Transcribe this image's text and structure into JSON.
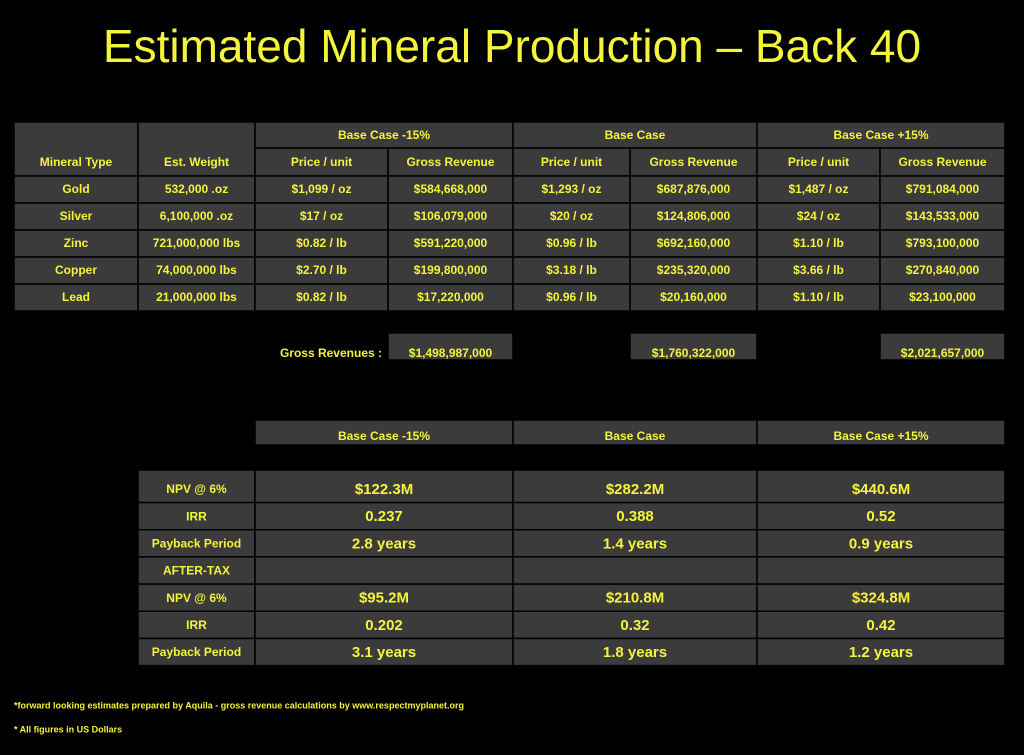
{
  "title": "Estimated Mineral Production – Back 40",
  "production_table": {
    "group_headers": [
      "Base Case -15%",
      "Base Case",
      "Base Case +15%"
    ],
    "column_headers": [
      "Mineral Type",
      "Est. Weight",
      "Price / unit",
      "Gross Revenue",
      "Price / unit",
      "Gross Revenue",
      "Price / unit",
      "Gross Revenue"
    ],
    "rows": [
      [
        "Gold",
        "532,000 .oz",
        "$1,099 / oz",
        "$584,668,000",
        "$1,293 / oz",
        "$687,876,000",
        "$1,487 / oz",
        "$791,084,000"
      ],
      [
        "Silver",
        "6,100,000 .oz",
        "$17 / oz",
        "$106,079,000",
        "$20 / oz",
        "$124,806,000",
        "$24 / oz",
        "$143,533,000"
      ],
      [
        "Zinc",
        "721,000,000 lbs",
        "$0.82 / lb",
        "$591,220,000",
        "$0.96 / lb",
        "$692,160,000",
        "$1.10 / lb",
        "$793,100,000"
      ],
      [
        "Copper",
        "74,000,000 lbs",
        "$2.70 / lb",
        "$199,800,000",
        "$3.18 / lb",
        "$235,320,000",
        "$3.66 / lb",
        "$270,840,000"
      ],
      [
        "Lead",
        "21,000,000 lbs",
        "$0.82 / lb",
        "$17,220,000",
        "$0.96 / lb",
        "$20,160,000",
        "$1.10 / lb",
        "$23,100,000"
      ]
    ]
  },
  "gross_revenues": {
    "label": "Gross Revenues :",
    "values": [
      "$1,498,987,000",
      "$1,760,322,000",
      "$2,021,657,000"
    ]
  },
  "results_table": {
    "column_headers": [
      "Base Case -15%",
      "Base Case",
      "Base Case +15%"
    ],
    "rows": [
      [
        "NPV @ 6%",
        "$122.3M",
        "$282.2M",
        "$440.6M"
      ],
      [
        "IRR",
        "0.237",
        "0.388",
        "0.52"
      ],
      [
        "Payback Period",
        "2.8 years",
        "1.4 years",
        "0.9 years"
      ],
      [
        "AFTER-TAX"
      ],
      [
        "NPV @ 6%",
        "$95.2M",
        "$210.8M",
        "$324.8M"
      ],
      [
        "IRR",
        "0.202",
        "0.32",
        "0.42"
      ],
      [
        "Payback Period",
        "3.1 years",
        "1.8 years",
        "1.2 years"
      ]
    ]
  },
  "footnotes": [
    "*forward looking estimates prepared by Aquila - gross revenue calculations by www.respectmyplanet.org",
    "* All figures in US Dollars"
  ]
}
